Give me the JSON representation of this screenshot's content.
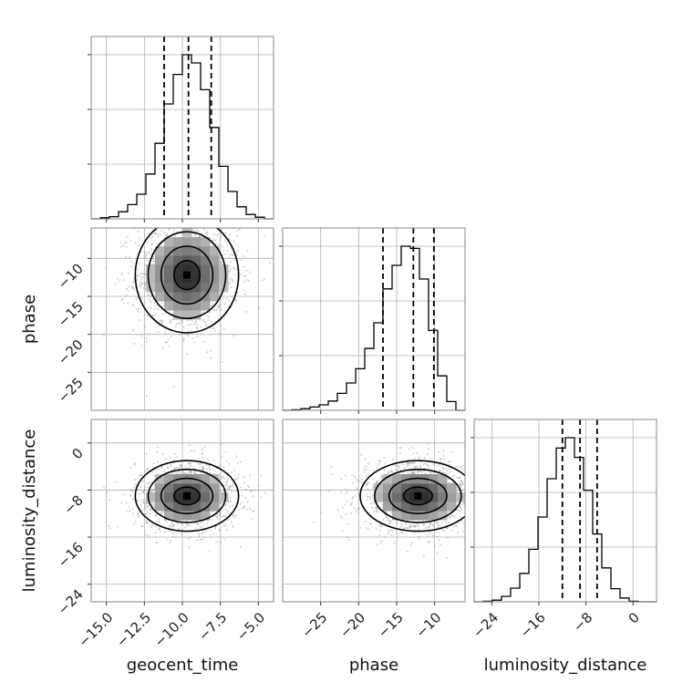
{
  "chart_data": {
    "type": "corner",
    "parameters": [
      {
        "name": "geocent_time",
        "range": [
          -16.0,
          -4.0
        ],
        "ticks": [
          -15.0,
          -12.5,
          -10.0,
          -7.5,
          -5.0
        ],
        "tick_labels": [
          "−15.0",
          "−12.5",
          "−10.0",
          "−7.5",
          "−5.0"
        ],
        "quantiles": [
          -11.2,
          -9.6,
          -8.1
        ],
        "peak": [
          -9.7,
          -12.2
        ]
      },
      {
        "name": "phase",
        "range": [
          -30.0,
          -6.0
        ],
        "ticks": [
          -25,
          -20,
          -15,
          -10
        ],
        "tick_labels": [
          "−25",
          "−20",
          "−15",
          "−10"
        ],
        "quantiles": [
          -16.8,
          -12.8,
          -10.1
        ]
      },
      {
        "name": "luminosity_distance",
        "range": [
          -27.0,
          4.0
        ],
        "ticks": [
          -24,
          -16,
          -8,
          0
        ],
        "tick_labels": [
          "−24",
          "−16",
          "−8",
          "0"
        ],
        "quantiles": [
          -12.0,
          -9.0,
          -6.1
        ]
      }
    ],
    "histograms": [
      {
        "parameter": "geocent_time",
        "bins": [
          -16.0,
          -15.4,
          -14.8,
          -14.2,
          -13.6,
          -13.0,
          -12.4,
          -11.8,
          -11.2,
          -10.6,
          -10.0,
          -9.4,
          -8.8,
          -8.2,
          -7.6,
          -7.0,
          -6.4,
          -5.8,
          -5.2,
          -4.6,
          -4.0
        ],
        "counts": [
          0,
          2,
          4,
          13,
          26,
          45,
          82,
          138,
          210,
          264,
          300,
          285,
          236,
          167,
          96,
          50,
          22,
          8,
          3,
          0
        ]
      },
      {
        "parameter": "phase",
        "bins": [
          -30.0,
          -28.8,
          -27.6,
          -26.4,
          -25.2,
          -24.0,
          -22.8,
          -21.6,
          -20.4,
          -19.2,
          -18.0,
          -16.8,
          -15.6,
          -14.4,
          -13.2,
          -12.0,
          -10.8,
          -9.6,
          -8.4,
          -7.2,
          -6.0
        ],
        "counts": [
          0,
          1,
          3,
          6,
          10,
          17,
          31,
          50,
          76,
          113,
          160,
          222,
          265,
          300,
          296,
          240,
          146,
          63,
          16,
          0
        ]
      },
      {
        "parameter": "luminosity_distance",
        "bins": [
          -27.0,
          -25.45,
          -23.9,
          -22.35,
          -20.8,
          -19.25,
          -17.7,
          -16.15,
          -14.6,
          -13.05,
          -11.5,
          -9.95,
          -8.4,
          -6.85,
          -5.3,
          -3.75,
          -2.2,
          -0.65,
          0.9,
          2.45,
          4.0
        ],
        "counts": [
          0,
          1,
          3,
          10,
          25,
          52,
          96,
          155,
          225,
          281,
          300,
          264,
          204,
          124,
          62,
          24,
          7,
          1,
          0,
          0
        ]
      }
    ],
    "pairs": [
      {
        "x": "geocent_time",
        "y": "phase",
        "center": [
          -9.7,
          -12.2
        ],
        "sigma": [
          1.7,
          3.8
        ],
        "contour_levels": [
          "0.5σ",
          "1σ",
          "1.5σ",
          "2σ"
        ]
      },
      {
        "x": "geocent_time",
        "y": "luminosity_distance",
        "center": [
          -9.7,
          -9.0
        ],
        "sigma": [
          1.7,
          3.0
        ],
        "contour_levels": [
          "0.5σ",
          "1σ",
          "1.5σ",
          "2σ"
        ]
      },
      {
        "x": "phase",
        "y": "luminosity_distance",
        "center": [
          -12.2,
          -9.0
        ],
        "sigma": [
          3.8,
          3.0
        ],
        "contour_levels": [
          "0.5σ",
          "1σ",
          "1.5σ",
          "2σ"
        ]
      }
    ],
    "grid": true,
    "quantiles_line_style": "dashed",
    "colors": {
      "line": "#000000",
      "grid": "#b0b0b0",
      "scatter": "#999999"
    }
  }
}
